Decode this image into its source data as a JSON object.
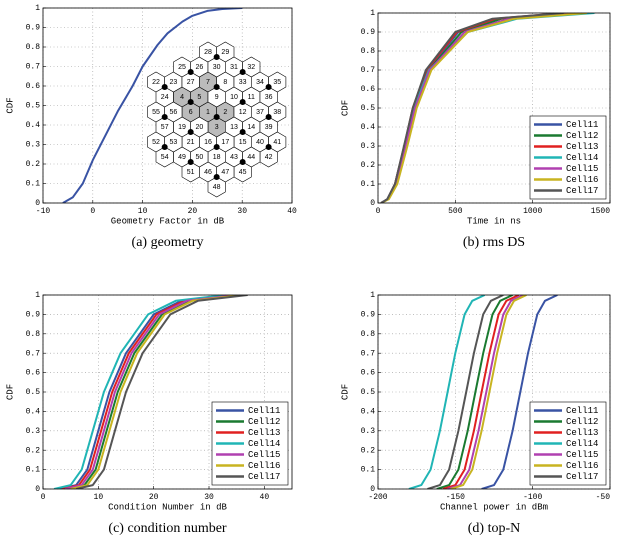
{
  "chart_data": [
    {
      "type": "line",
      "xlabel": "Geometry Factor in dB",
      "ylabel": "CDF",
      "caption": "(a) geometry",
      "xlim": [
        -10,
        40
      ],
      "xticks": [
        -10,
        0,
        10,
        20,
        30,
        40
      ],
      "ylim": [
        0,
        1
      ],
      "yticks": [
        0,
        0.1,
        0.2,
        0.3,
        0.4,
        0.5,
        0.6,
        0.7,
        0.8,
        0.9,
        1
      ],
      "grid": true,
      "series": [
        {
          "color": "#3953a4",
          "x": [
            -6,
            -4,
            -2,
            0,
            2,
            5,
            8,
            10,
            13,
            15,
            18,
            20,
            23,
            26,
            30
          ],
          "values": [
            0,
            0.03,
            0.1,
            0.22,
            0.32,
            0.47,
            0.6,
            0.7,
            0.81,
            0.87,
            0.93,
            0.96,
            0.985,
            0.995,
            1
          ]
        }
      ],
      "hex_labels": [
        1,
        2,
        3,
        4,
        5,
        6,
        7,
        8,
        9,
        10,
        11,
        12,
        13,
        14,
        15,
        16,
        17,
        18,
        19,
        20,
        21,
        22,
        23,
        24,
        25,
        26,
        27,
        28,
        29,
        30,
        31,
        32,
        33,
        34,
        35,
        36,
        37,
        38,
        39,
        40,
        41,
        42,
        43,
        44,
        45,
        46,
        47,
        48,
        49,
        50,
        51,
        52,
        53,
        54,
        55,
        56,
        57
      ]
    },
    {
      "type": "line",
      "xlabel": "Time in ns",
      "ylabel": "CDF",
      "caption": "(b) rms DS",
      "xlim": [
        0,
        1500
      ],
      "xticks": [
        0,
        500,
        1000,
        1500
      ],
      "ylim": [
        0,
        1
      ],
      "yticks": [
        0,
        0.1,
        0.2,
        0.3,
        0.4,
        0.5,
        0.6,
        0.7,
        0.8,
        0.9,
        1
      ],
      "grid": true,
      "legend": "lower right",
      "series": [
        {
          "name": "Cell11",
          "color": "#3953a4",
          "x": [
            20,
            60,
            110,
            170,
            230,
            320,
            520,
            780,
            1300
          ],
          "values": [
            0,
            0.02,
            0.1,
            0.3,
            0.5,
            0.7,
            0.9,
            0.97,
            1
          ]
        },
        {
          "name": "Cell12",
          "color": "#1a7a30",
          "x": [
            20,
            65,
            115,
            175,
            235,
            330,
            540,
            800,
            1250
          ],
          "values": [
            0,
            0.02,
            0.1,
            0.3,
            0.5,
            0.7,
            0.9,
            0.97,
            1
          ]
        },
        {
          "name": "Cell13",
          "color": "#e02020",
          "x": [
            20,
            60,
            110,
            170,
            225,
            315,
            510,
            760,
            1200
          ],
          "values": [
            0,
            0.02,
            0.1,
            0.3,
            0.5,
            0.7,
            0.9,
            0.97,
            1
          ]
        },
        {
          "name": "Cell14",
          "color": "#20b5b5",
          "x": [
            20,
            60,
            112,
            172,
            232,
            330,
            580,
            900,
            1400
          ],
          "values": [
            0,
            0.02,
            0.1,
            0.3,
            0.5,
            0.7,
            0.9,
            0.97,
            1
          ]
        },
        {
          "name": "Cell15",
          "color": "#b040b0",
          "x": [
            20,
            62,
            115,
            178,
            240,
            335,
            560,
            850,
            1300
          ],
          "values": [
            0,
            0.02,
            0.1,
            0.3,
            0.5,
            0.7,
            0.9,
            0.97,
            1
          ]
        },
        {
          "name": "Cell16",
          "color": "#c8b420",
          "x": [
            20,
            70,
            125,
            190,
            250,
            345,
            580,
            880,
            1350
          ],
          "values": [
            0,
            0.02,
            0.1,
            0.3,
            0.5,
            0.7,
            0.9,
            0.97,
            1
          ]
        },
        {
          "name": "Cell17",
          "color": "#555555",
          "x": [
            20,
            60,
            110,
            168,
            225,
            310,
            500,
            740,
            1200
          ],
          "values": [
            0,
            0.02,
            0.1,
            0.3,
            0.5,
            0.7,
            0.9,
            0.97,
            1
          ]
        }
      ]
    },
    {
      "type": "line",
      "xlabel": "Condition Number in dB",
      "ylabel": "CDF",
      "caption": "(c) condition number",
      "xlim": [
        0,
        45
      ],
      "xticks": [
        0,
        10,
        20,
        30,
        40
      ],
      "ylim": [
        0,
        1
      ],
      "yticks": [
        0,
        0.1,
        0.2,
        0.3,
        0.4,
        0.5,
        0.6,
        0.7,
        0.8,
        0.9,
        1
      ],
      "grid": true,
      "legend": "lower right",
      "series": [
        {
          "name": "Cell11",
          "color": "#3953a4",
          "x": [
            3,
            6,
            8,
            10,
            12,
            15,
            20,
            25,
            34
          ],
          "values": [
            0,
            0.02,
            0.1,
            0.3,
            0.5,
            0.7,
            0.9,
            0.97,
            1
          ]
        },
        {
          "name": "Cell12",
          "color": "#1a7a30",
          "x": [
            4.5,
            7.5,
            9.5,
            11.5,
            13.5,
            16.5,
            21.5,
            26.5,
            35.5
          ],
          "values": [
            0,
            0.02,
            0.1,
            0.3,
            0.5,
            0.7,
            0.9,
            0.97,
            1
          ]
        },
        {
          "name": "Cell13",
          "color": "#e02020",
          "x": [
            3.5,
            6.5,
            8.5,
            10.5,
            12.5,
            15.5,
            20.5,
            25.5,
            34.5
          ],
          "values": [
            0,
            0.02,
            0.1,
            0.3,
            0.5,
            0.7,
            0.9,
            0.97,
            1
          ]
        },
        {
          "name": "Cell14",
          "color": "#20b5b5",
          "x": [
            2,
            5,
            7,
            9,
            11,
            14,
            19,
            24,
            33
          ],
          "values": [
            0,
            0.02,
            0.1,
            0.3,
            0.5,
            0.7,
            0.9,
            0.97,
            1
          ]
        },
        {
          "name": "Cell15",
          "color": "#b040b0",
          "x": [
            4,
            7,
            9,
            11,
            13,
            16,
            21,
            26,
            35
          ],
          "values": [
            0,
            0.02,
            0.1,
            0.3,
            0.5,
            0.7,
            0.9,
            0.97,
            1
          ]
        },
        {
          "name": "Cell16",
          "color": "#c8b420",
          "x": [
            5,
            8,
            10,
            12,
            14,
            17,
            22,
            27,
            36
          ],
          "values": [
            0,
            0.02,
            0.1,
            0.3,
            0.5,
            0.7,
            0.9,
            0.97,
            1
          ]
        },
        {
          "name": "Cell17",
          "color": "#555555",
          "x": [
            6,
            9,
            11,
            13,
            15,
            18,
            23,
            28,
            37
          ],
          "values": [
            0,
            0.02,
            0.1,
            0.3,
            0.5,
            0.7,
            0.9,
            0.97,
            1
          ]
        }
      ]
    },
    {
      "type": "line",
      "xlabel": "Channel power in dBm",
      "ylabel": "CDF",
      "caption": "(d) top-N",
      "xlim": [
        -200,
        -50
      ],
      "xticks": [
        -200,
        -150,
        -100,
        -50
      ],
      "ylim": [
        0,
        1
      ],
      "yticks": [
        0,
        0.1,
        0.2,
        0.3,
        0.4,
        0.5,
        0.6,
        0.7,
        0.8,
        0.9,
        1
      ],
      "grid": true,
      "legend": "lower right",
      "series": [
        {
          "name": "Cell11",
          "color": "#3953a4",
          "x": [
            -133,
            -125,
            -119,
            -113,
            -108,
            -103,
            -97,
            -92,
            -84
          ],
          "values": [
            0,
            0.02,
            0.1,
            0.3,
            0.5,
            0.7,
            0.9,
            0.97,
            1
          ]
        },
        {
          "name": "Cell12",
          "color": "#1a7a30",
          "x": [
            -162,
            -154,
            -148,
            -142,
            -137,
            -132,
            -126,
            -121,
            -113
          ],
          "values": [
            0,
            0.02,
            0.1,
            0.3,
            0.5,
            0.7,
            0.9,
            0.97,
            1
          ]
        },
        {
          "name": "Cell13",
          "color": "#e02020",
          "x": [
            -158,
            -150,
            -144,
            -138,
            -133,
            -128,
            -122,
            -117,
            -109
          ],
          "values": [
            0,
            0.02,
            0.1,
            0.3,
            0.5,
            0.7,
            0.9,
            0.97,
            1
          ]
        },
        {
          "name": "Cell14",
          "color": "#20b5b5",
          "x": [
            -180,
            -172,
            -166,
            -160,
            -155,
            -150,
            -144,
            -139,
            -131
          ],
          "values": [
            0,
            0.02,
            0.1,
            0.3,
            0.5,
            0.7,
            0.9,
            0.97,
            1
          ]
        },
        {
          "name": "Cell15",
          "color": "#b040b0",
          "x": [
            -155,
            -147,
            -141,
            -135,
            -130,
            -125,
            -119,
            -114,
            -106
          ],
          "values": [
            0,
            0.02,
            0.1,
            0.3,
            0.5,
            0.7,
            0.9,
            0.97,
            1
          ]
        },
        {
          "name": "Cell16",
          "color": "#c8b420",
          "x": [
            -153,
            -145,
            -139,
            -133,
            -128,
            -123,
            -117,
            -112,
            -104
          ],
          "values": [
            0,
            0.02,
            0.1,
            0.3,
            0.5,
            0.7,
            0.9,
            0.97,
            1
          ]
        },
        {
          "name": "Cell17",
          "color": "#555555",
          "x": [
            -168,
            -160,
            -154,
            -148,
            -143,
            -138,
            -132,
            -127,
            -119
          ],
          "values": [
            0,
            0.02,
            0.1,
            0.3,
            0.5,
            0.7,
            0.9,
            0.97,
            1
          ]
        }
      ]
    }
  ]
}
